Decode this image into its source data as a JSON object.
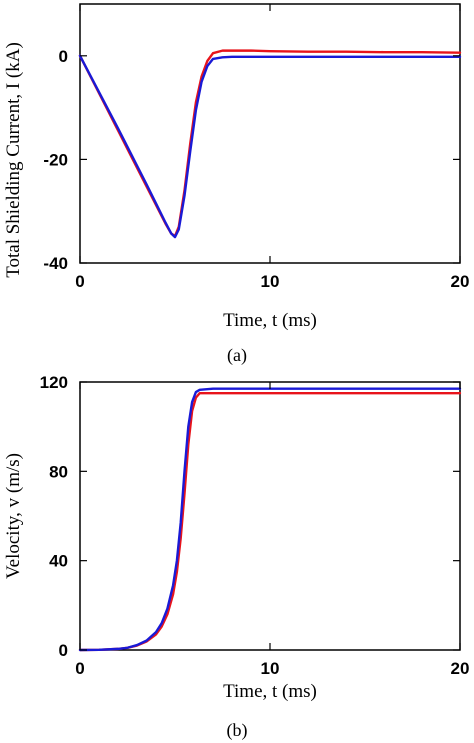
{
  "chart_data": [
    {
      "type": "line",
      "panel_label": "(a)",
      "xlabel": "Time, t (ms)",
      "ylabel": "Total Shielding Current, I (kA)",
      "xlim": [
        0,
        20
      ],
      "ylim": [
        -40,
        10
      ],
      "x_ticks": [
        0,
        10,
        20
      ],
      "y_ticks": [
        0,
        -20,
        -40
      ],
      "x_tick_labels": [
        "0",
        "10",
        "20"
      ],
      "y_tick_labels": [
        "0",
        "-20",
        "-40"
      ],
      "grid": false,
      "legend": "none",
      "series": [
        {
          "color": "#e8141b",
          "x": [
            0,
            0.5,
            1,
            1.5,
            2,
            2.5,
            3,
            3.5,
            4,
            4.5,
            4.8,
            5.0,
            5.2,
            5.5,
            5.8,
            6.1,
            6.4,
            6.7,
            7.0,
            7.5,
            8,
            9,
            10,
            12,
            14,
            16,
            18,
            20
          ],
          "y": [
            0,
            -3.6,
            -7.2,
            -10.8,
            -14.4,
            -18,
            -21.6,
            -25.2,
            -28.8,
            -32.4,
            -34.3,
            -34.8,
            -33,
            -26,
            -17,
            -9,
            -4,
            -1,
            0.5,
            1.0,
            1.0,
            1.0,
            0.9,
            0.8,
            0.8,
            0.7,
            0.7,
            0.6
          ]
        },
        {
          "color": "#1a1ad6",
          "x": [
            0,
            0.5,
            1,
            1.5,
            2,
            2.5,
            3,
            3.5,
            4,
            4.5,
            4.8,
            5.0,
            5.2,
            5.5,
            5.8,
            6.1,
            6.4,
            6.7,
            7.0,
            7.5,
            8,
            9,
            10,
            12,
            14,
            16,
            18,
            20
          ],
          "y": [
            0,
            -3.5,
            -7.0,
            -10.5,
            -14.0,
            -17.6,
            -21.2,
            -24.8,
            -28.5,
            -32.2,
            -34.3,
            -35.0,
            -33.5,
            -27,
            -18.5,
            -10.5,
            -5,
            -2,
            -0.6,
            -0.3,
            -0.2,
            -0.2,
            -0.2,
            -0.2,
            -0.2,
            -0.2,
            -0.2,
            -0.2
          ]
        }
      ]
    },
    {
      "type": "line",
      "panel_label": "(b)",
      "xlabel": "Time, t (ms)",
      "ylabel": "Velocity, v (m/s)",
      "xlim": [
        0,
        20
      ],
      "ylim": [
        0,
        120
      ],
      "x_ticks": [
        0,
        10,
        20
      ],
      "y_ticks": [
        0,
        40,
        80,
        120
      ],
      "x_tick_labels": [
        "0",
        "10",
        "20"
      ],
      "y_tick_labels": [
        "0",
        "40",
        "80",
        "120"
      ],
      "grid": false,
      "legend": "none",
      "series": [
        {
          "color": "#e8141b",
          "x": [
            0,
            1,
            2,
            2.5,
            3,
            3.5,
            4,
            4.3,
            4.6,
            4.9,
            5.1,
            5.3,
            5.5,
            5.7,
            5.9,
            6.1,
            6.3,
            7,
            8,
            10,
            12,
            14,
            16,
            18,
            20
          ],
          "y": [
            0,
            0.1,
            0.5,
            1.0,
            2.0,
            3.8,
            7,
            10.5,
            16,
            25,
            35,
            50,
            70,
            92,
            107,
            113,
            115,
            115,
            115,
            115,
            115,
            115,
            115,
            115,
            115
          ]
        },
        {
          "color": "#1a1ad6",
          "x": [
            0,
            1,
            2,
            2.5,
            3,
            3.5,
            4,
            4.3,
            4.6,
            4.9,
            5.1,
            5.3,
            5.5,
            5.7,
            5.9,
            6.1,
            6.3,
            7,
            8,
            10,
            12,
            14,
            16,
            18,
            20
          ],
          "y": [
            0,
            0.1,
            0.5,
            1.0,
            2.2,
            4.2,
            8,
            12,
            18.5,
            29,
            40,
            57,
            80,
            100,
            111,
            115.5,
            116.5,
            117,
            117,
            117,
            117,
            117,
            117,
            117,
            117
          ]
        }
      ]
    }
  ]
}
